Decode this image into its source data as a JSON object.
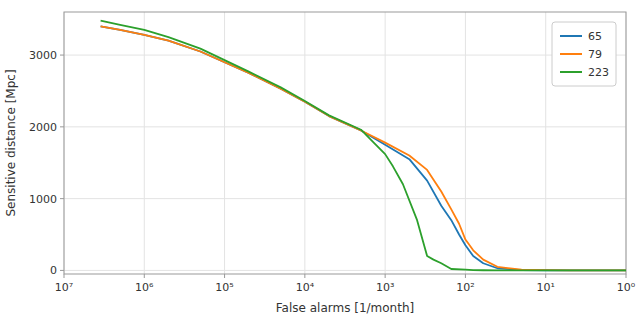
{
  "chart_data": {
    "type": "line",
    "xlabel": "False alarms [1/month]",
    "ylabel": "Sensitive distance [Mpc]",
    "log": "x",
    "grid": true,
    "legend": "upper right",
    "xlim": [
      10000000,
      1
    ],
    "xticks": [
      {
        "value": 10000000,
        "label": "10⁷"
      },
      {
        "value": 1000000,
        "label": "10⁶"
      },
      {
        "value": 100000,
        "label": "10⁵"
      },
      {
        "value": 10000,
        "label": "10⁴"
      },
      {
        "value": 1000,
        "label": "10³"
      },
      {
        "value": 100,
        "label": "10²"
      },
      {
        "value": 10,
        "label": "10¹"
      },
      {
        "value": 1,
        "label": "10⁰"
      }
    ],
    "ylim": [
      -50,
      3600
    ],
    "yticks": [
      0,
      1000,
      2000,
      3000
    ],
    "series": [
      {
        "name": "65",
        "color": "#1f77b4",
        "x": [
          3500000,
          2000000,
          1000000,
          500000,
          200000,
          100000,
          50000,
          20000,
          10000,
          5000,
          2000,
          1000,
          500,
          300,
          200,
          150,
          120,
          100,
          80,
          60,
          40,
          20,
          10,
          5,
          2,
          1
        ],
        "values": [
          3400,
          3350,
          3280,
          3200,
          3050,
          2900,
          2750,
          2530,
          2350,
          2150,
          1950,
          1750,
          1550,
          1250,
          900,
          700,
          500,
          350,
          200,
          100,
          30,
          5,
          2,
          1,
          0,
          0
        ]
      },
      {
        "name": "79",
        "color": "#ff7f0e",
        "x": [
          3500000,
          2000000,
          1000000,
          500000,
          200000,
          100000,
          50000,
          20000,
          10000,
          5000,
          2000,
          1000,
          500,
          300,
          200,
          150,
          120,
          100,
          80,
          60,
          40,
          20,
          10,
          5,
          2,
          1
        ],
        "values": [
          3400,
          3350,
          3280,
          3200,
          3050,
          2900,
          2750,
          2530,
          2350,
          2150,
          1950,
          1780,
          1600,
          1400,
          1100,
          850,
          650,
          430,
          280,
          150,
          50,
          10,
          3,
          1,
          0,
          0
        ]
      },
      {
        "name": "223",
        "color": "#2ca02c",
        "x": [
          3500000,
          2000000,
          1000000,
          500000,
          200000,
          100000,
          50000,
          20000,
          10000,
          5000,
          2000,
          1500,
          1000,
          800,
          600,
          400,
          300,
          250,
          200,
          150,
          100,
          80,
          60,
          40,
          20,
          10,
          5,
          2,
          1
        ],
        "values": [
          3480,
          3420,
          3350,
          3250,
          3090,
          2930,
          2770,
          2550,
          2360,
          2160,
          1960,
          1820,
          1620,
          1450,
          1200,
          700,
          200,
          150,
          100,
          20,
          10,
          5,
          2,
          1,
          0,
          0,
          0,
          0,
          0
        ]
      }
    ]
  }
}
